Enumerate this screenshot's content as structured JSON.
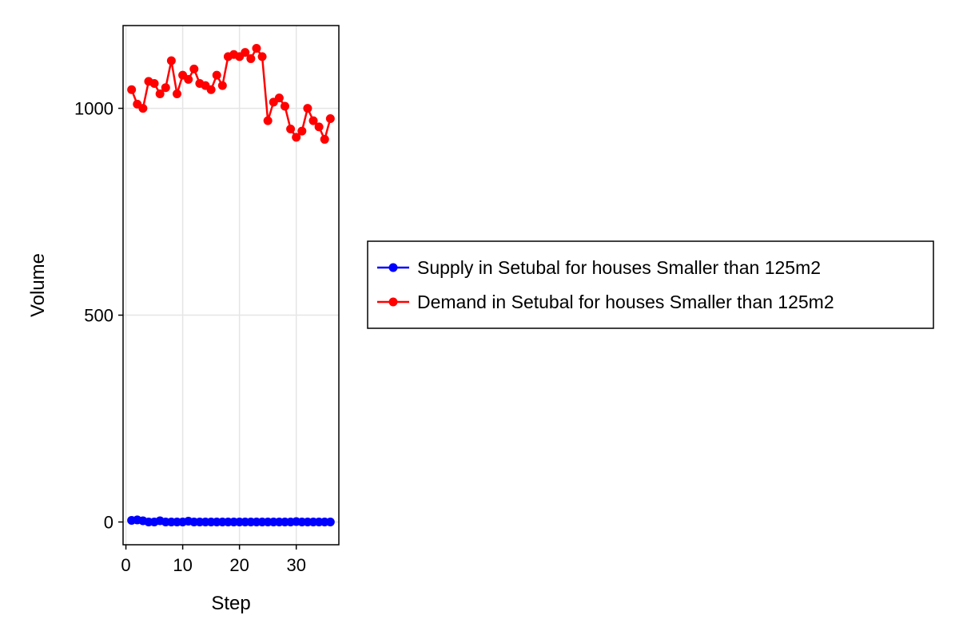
{
  "chart_data": {
    "type": "line",
    "xlabel": "Step",
    "ylabel": "Volume",
    "xlim": [
      -0.5,
      37.5
    ],
    "ylim": [
      -55,
      1200
    ],
    "x_ticks": [
      0,
      10,
      20,
      30
    ],
    "y_ticks": [
      0,
      500,
      1000
    ],
    "grid": true,
    "legend_position": "right",
    "x": [
      1,
      2,
      3,
      4,
      5,
      6,
      7,
      8,
      9,
      10,
      11,
      12,
      13,
      14,
      15,
      16,
      17,
      18,
      19,
      20,
      21,
      22,
      23,
      24,
      25,
      26,
      27,
      28,
      29,
      30,
      31,
      32,
      33,
      34,
      35,
      36
    ],
    "series": [
      {
        "name": "Supply in Setubal for houses Smaller than 125m2",
        "color": "#0000ff",
        "values": [
          4,
          5,
          3,
          0,
          0,
          3,
          0,
          0,
          0,
          0,
          2,
          0,
          0,
          0,
          0,
          0,
          0,
          0,
          0,
          0,
          0,
          0,
          0,
          0,
          0,
          0,
          0,
          0,
          0,
          1,
          0,
          0,
          0,
          0,
          0,
          0
        ]
      },
      {
        "name": "Demand in Setubal for houses Smaller than 125m2",
        "color": "#ff0000",
        "values": [
          1045,
          1010,
          1000,
          1065,
          1060,
          1035,
          1050,
          1115,
          1035,
          1080,
          1070,
          1095,
          1060,
          1055,
          1045,
          1080,
          1055,
          1125,
          1130,
          1125,
          1135,
          1120,
          1145,
          1125,
          970,
          1015,
          1025,
          1005,
          950,
          930,
          945,
          1000,
          970,
          955,
          925,
          975
        ]
      }
    ]
  }
}
